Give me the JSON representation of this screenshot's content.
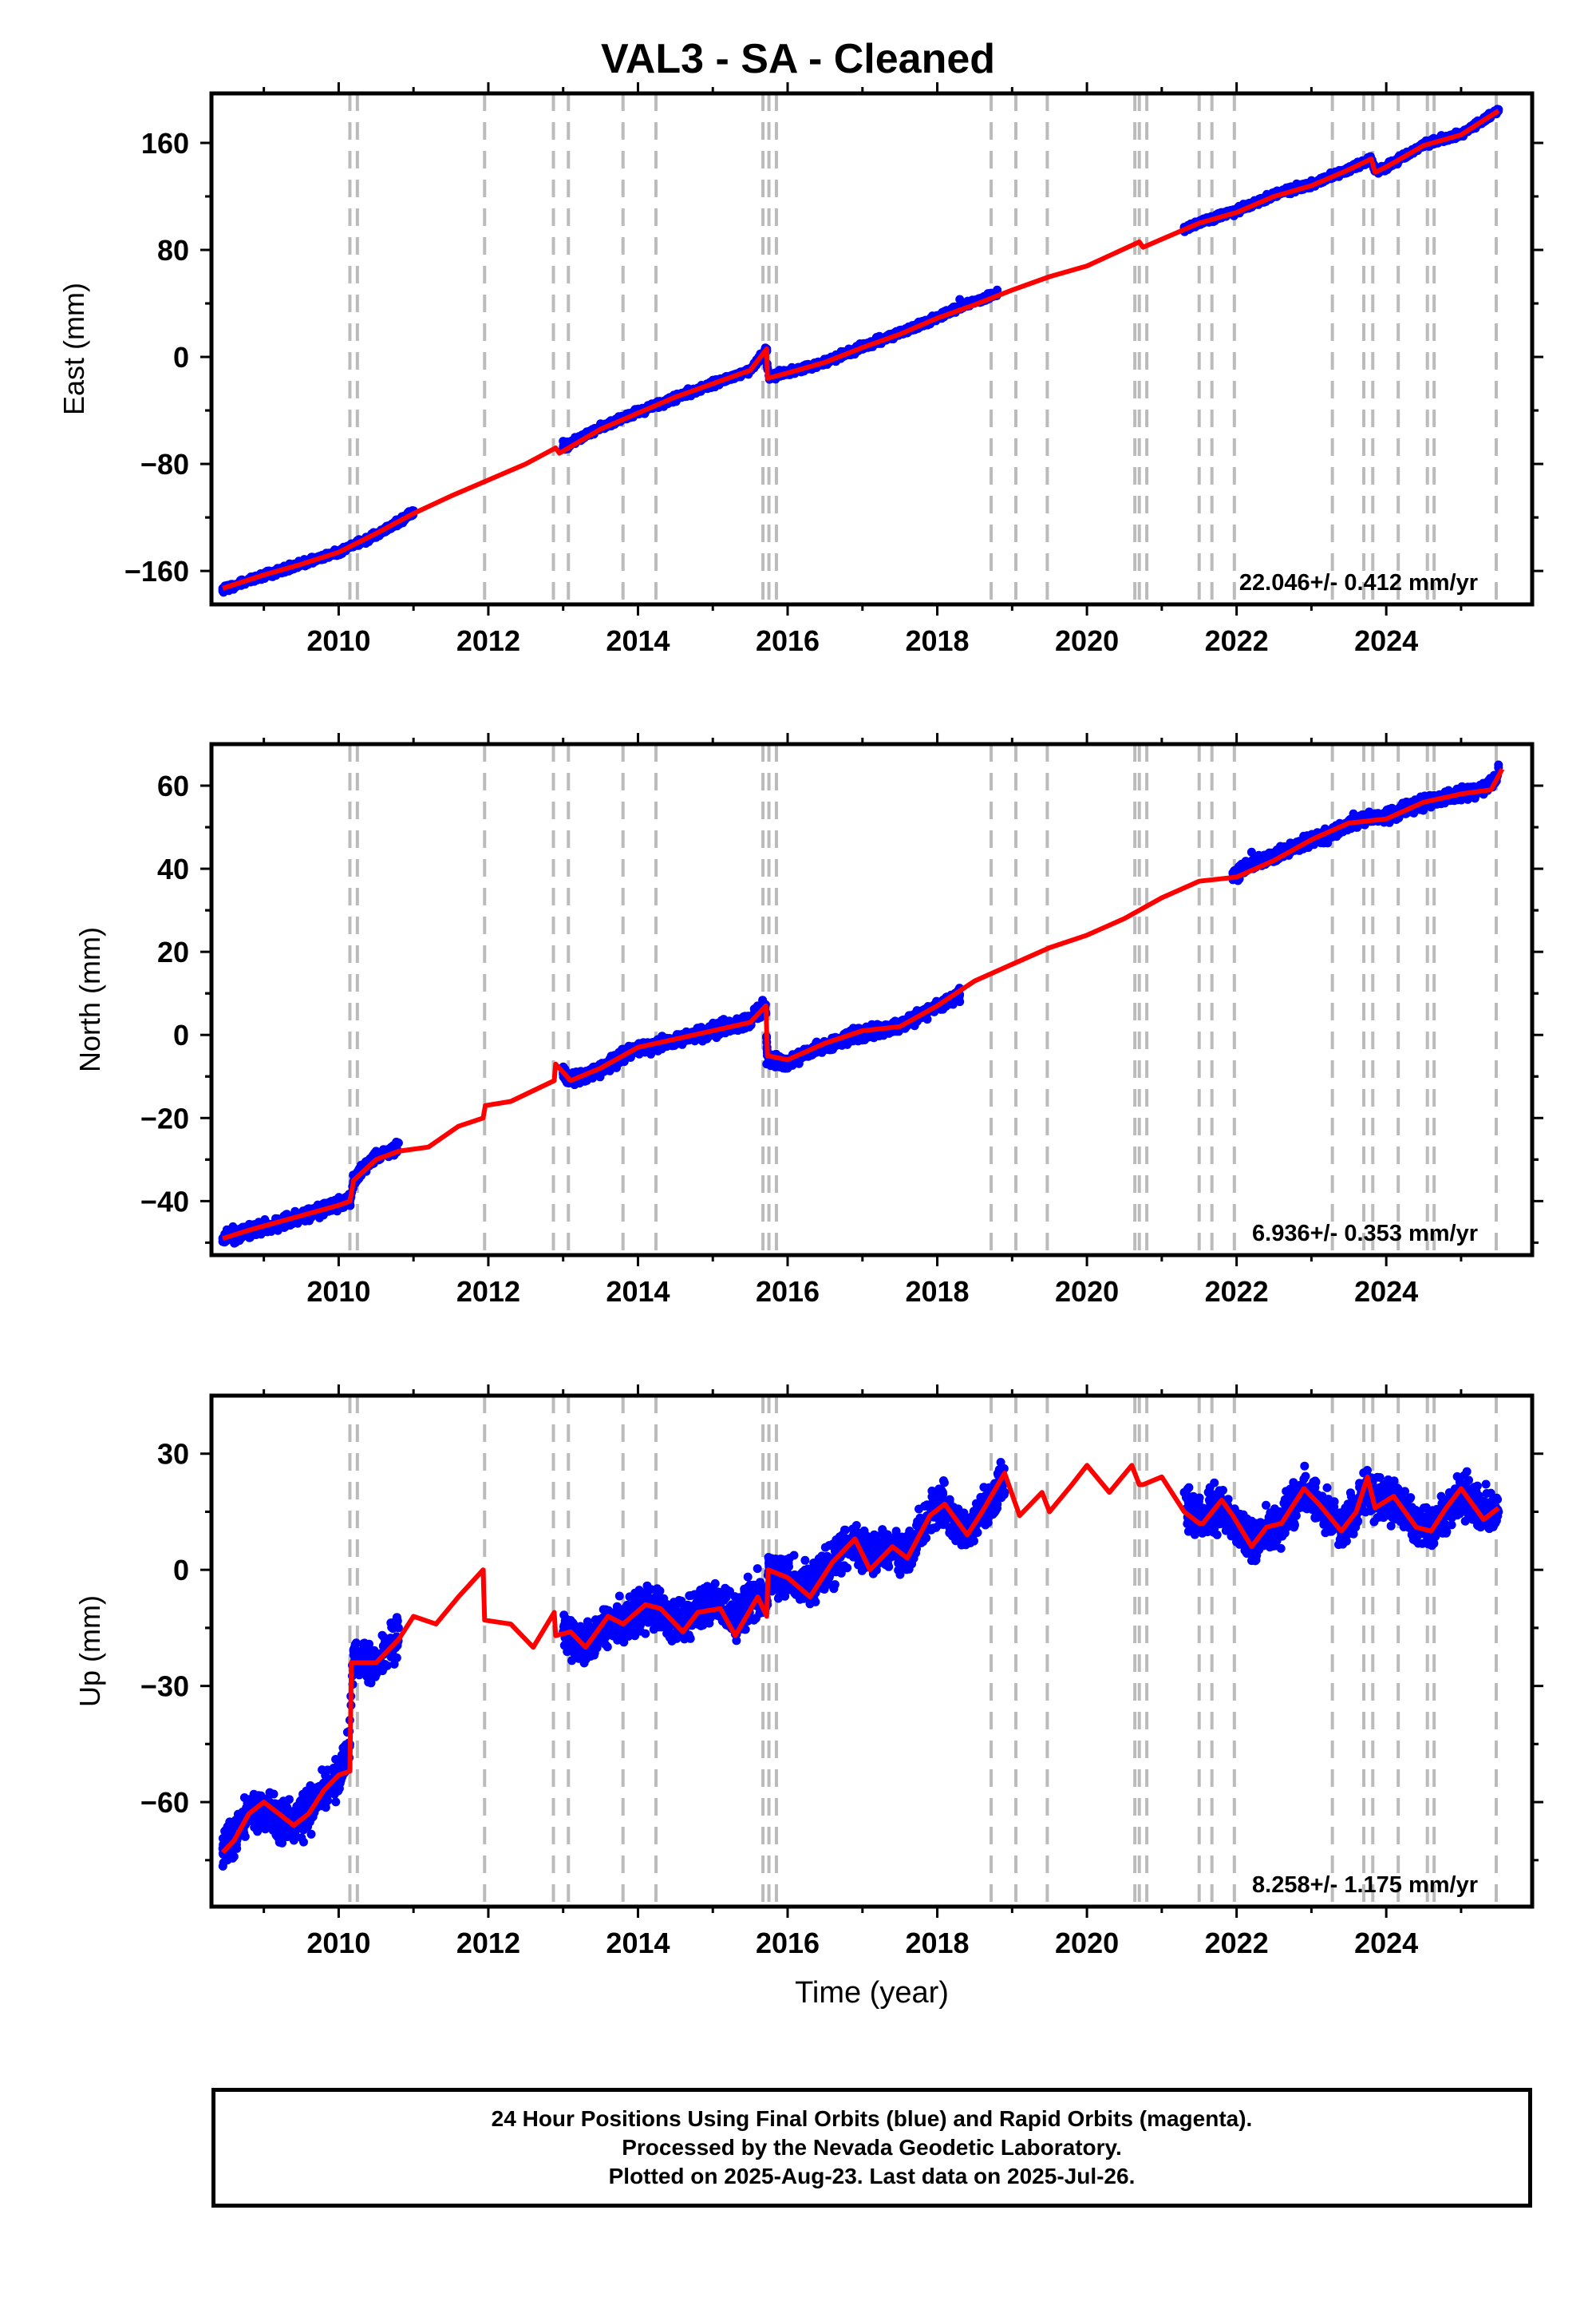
{
  "title": "VAL3  - SA - Cleaned",
  "footer": {
    "line1": "24 Hour Positions Using Final Orbits (blue) and Rapid Orbits (magenta).",
    "line2": "Processed by the Nevada Geodetic Laboratory.",
    "line3": "Plotted on 2025-Aug-23. Last data on 2025-Jul-26."
  },
  "colors": {
    "data": "#0000ff",
    "model": "#ff0000",
    "event_lines": "#bbbbbb",
    "axes": "#000000"
  },
  "chart_data": [
    {
      "type": "scatter",
      "name": "east",
      "ylabel": "East (mm)",
      "xlim": [
        2008.3,
        2025.95
      ],
      "ylim": [
        -185,
        197
      ],
      "yticks": [
        -160,
        -80,
        0,
        80,
        160
      ],
      "xticks": [
        2010,
        2012,
        2014,
        2016,
        2018,
        2020,
        2022,
        2024
      ],
      "rate_label": "22.046+/- 0.412 mm/yr",
      "grid": false,
      "series": [
        {
          "kind": "data",
          "x": [
            2008.45,
            2009.0,
            2009.5,
            2010.0,
            2010.5,
            2011.0,
            2013.0,
            2013.5,
            2014.0,
            2014.5,
            2015.0,
            2015.5,
            2015.72,
            2015.75,
            2016.0,
            2016.5,
            2017.0,
            2017.5,
            2018.0,
            2018.3,
            2018.8,
            2021.3,
            2022.3,
            2022.5,
            2023.0,
            2023.5,
            2023.8,
            2023.9,
            2024.0,
            2024.5,
            2025.0,
            2025.5
          ],
          "y": [
            -175,
            -165,
            -155,
            -145,
            -135,
            -115,
            -63,
            -50,
            -40,
            -32,
            -20,
            -10,
            6,
            -14,
            -11,
            -4,
            8,
            20,
            30,
            43,
            50,
            97,
            118,
            123,
            131,
            141,
            147,
            138,
            142,
            160,
            168,
            185
          ]
        },
        {
          "kind": "model",
          "x": [
            2008.45,
            2009.0,
            2009.5,
            2010.0,
            2010.5,
            2011.0,
            2011.5,
            2012.0,
            2012.5,
            2012.9,
            2012.95,
            2013.5,
            2014.0,
            2014.5,
            2015.0,
            2015.5,
            2015.72,
            2015.73,
            2016.0,
            2016.5,
            2017.0,
            2017.5,
            2018.0,
            2018.5,
            2019.0,
            2019.5,
            2020.0,
            2020.7,
            2020.75,
            2021.0,
            2021.5,
            2022.0,
            2022.5,
            2023.0,
            2023.5,
            2023.8,
            2023.85,
            2024.0,
            2024.5,
            2025.0,
            2025.5
          ],
          "y": [
            -173,
            -163,
            -155,
            -146,
            -132,
            -117,
            -104,
            -92,
            -80,
            -68,
            -72,
            -54,
            -42,
            -30,
            -20,
            -10,
            6,
            -16,
            -12,
            -4,
            7,
            17,
            29,
            39,
            50,
            60,
            68,
            86,
            82,
            88,
            100,
            108,
            120,
            128,
            140,
            148,
            138,
            142,
            158,
            166,
            184
          ]
        }
      ]
    },
    {
      "type": "scatter",
      "name": "north",
      "ylabel": "North (mm)",
      "xlim": [
        2008.3,
        2025.95
      ],
      "ylim": [
        -53,
        70
      ],
      "yticks": [
        -40,
        -20,
        0,
        20,
        40,
        60
      ],
      "xticks": [
        2010,
        2012,
        2014,
        2016,
        2018,
        2020,
        2022,
        2024
      ],
      "rate_label": "6.936+/- 0.353 mm/yr",
      "grid": false,
      "series": [
        {
          "kind": "data",
          "x": [
            2008.45,
            2008.8,
            2009.2,
            2009.6,
            2010.0,
            2010.15,
            2010.25,
            2010.5,
            2010.8,
            2013.0,
            2013.3,
            2013.8,
            2014.3,
            2014.8,
            2015.2,
            2015.7,
            2015.72,
            2016.0,
            2016.3,
            2016.8,
            2017.2,
            2017.8,
            2018.3,
            2021.95,
            2022.2,
            2022.8,
            2023.3,
            2023.7,
            2024.2,
            2024.7,
            2025.2,
            2025.5
          ],
          "y": [
            -49,
            -48,
            -46,
            -43,
            -40,
            -40,
            -33,
            -28,
            -26,
            -9,
            -11,
            -5,
            -3,
            0,
            2,
            7,
            -7,
            -8,
            -5,
            -1,
            0,
            5,
            8,
            39,
            44,
            46,
            48,
            53,
            55,
            57,
            59,
            65
          ]
        },
        {
          "kind": "model",
          "x": [
            2008.45,
            2008.8,
            2009.2,
            2009.6,
            2010.0,
            2010.15,
            2010.2,
            2010.5,
            2010.8,
            2011.2,
            2011.6,
            2011.93,
            2011.96,
            2012.3,
            2012.88,
            2012.9,
            2013.1,
            2013.5,
            2014.0,
            2014.5,
            2015.0,
            2015.5,
            2015.71,
            2015.73,
            2016.0,
            2016.5,
            2017.0,
            2017.5,
            2018.0,
            2018.5,
            2019.0,
            2019.5,
            2020.0,
            2020.5,
            2021.0,
            2021.5,
            2022.0,
            2022.5,
            2023.0,
            2023.5,
            2024.0,
            2024.5,
            2025.0,
            2025.4,
            2025.55
          ],
          "y": [
            -49,
            -47,
            -45,
            -43,
            -41,
            -40,
            -35,
            -30,
            -28,
            -27,
            -22,
            -20,
            -17,
            -16,
            -11,
            -7,
            -11,
            -8,
            -3,
            -1,
            1,
            3,
            7,
            -5,
            -6,
            -2,
            1,
            2,
            7,
            13,
            17,
            21,
            24,
            28,
            33,
            37,
            38,
            42,
            47,
            51,
            52,
            56,
            58,
            59,
            64
          ]
        }
      ]
    },
    {
      "type": "scatter",
      "name": "up",
      "ylabel": "Up (mm)",
      "xlabel": "Time (year)",
      "xlim": [
        2008.3,
        2025.95
      ],
      "ylim": [
        -87,
        45
      ],
      "yticks": [
        -60,
        -30,
        0,
        30
      ],
      "xticks": [
        2010,
        2012,
        2014,
        2016,
        2018,
        2020,
        2022,
        2024
      ],
      "rate_label": "8.258+/- 1.175 mm/yr",
      "grid": false,
      "series": [
        {
          "kind": "data",
          "x": [
            2008.45,
            2008.8,
            2009.2,
            2009.6,
            2010.0,
            2010.2,
            2010.5,
            2010.8,
            2013.0,
            2013.5,
            2014.0,
            2014.5,
            2015.0,
            2015.5,
            2016.0,
            2016.5,
            2017.0,
            2017.5,
            2018.0,
            2018.3,
            2018.9,
            2021.3,
            2022.2,
            2022.6,
            2023.0,
            2023.5,
            2023.9,
            2024.3,
            2024.7,
            2025.1,
            2025.5
          ],
          "y": [
            -72,
            -62,
            -67,
            -61,
            -54,
            -22,
            -25,
            -15,
            -16,
            -18,
            -10,
            -12,
            -6,
            -4,
            -2,
            3,
            9,
            6,
            16,
            10,
            20,
            20,
            8,
            12,
            19,
            12,
            21,
            15,
            12,
            19,
            15
          ]
        },
        {
          "kind": "model",
          "x": [
            2008.45,
            2008.6,
            2008.8,
            2009.0,
            2009.2,
            2009.4,
            2009.6,
            2009.8,
            2010.0,
            2010.15,
            2010.17,
            2010.5,
            2010.8,
            2011.0,
            2011.3,
            2011.6,
            2011.93,
            2011.95,
            2012.3,
            2012.6,
            2012.88,
            2012.9,
            2013.1,
            2013.3,
            2013.6,
            2013.8,
            2014.1,
            2014.3,
            2014.6,
            2014.8,
            2015.1,
            2015.3,
            2015.6,
            2015.72,
            2015.74,
            2016.0,
            2016.3,
            2016.6,
            2016.9,
            2017.1,
            2017.4,
            2017.6,
            2017.9,
            2018.1,
            2018.4,
            2018.6,
            2018.9,
            2019.1,
            2019.4,
            2019.5,
            2019.8,
            2020.0,
            2020.3,
            2020.6,
            2020.7,
            2020.75,
            2021.0,
            2021.3,
            2021.5,
            2021.55,
            2021.8,
            2021.95,
            2022.2,
            2022.4,
            2022.6,
            2022.9,
            2023.1,
            2023.4,
            2023.6,
            2023.75,
            2023.85,
            2024.1,
            2024.4,
            2024.6,
            2024.8,
            2025.0,
            2025.3,
            2025.5
          ],
          "y": [
            -73,
            -70,
            -63,
            -60,
            -63,
            -66,
            -63,
            -57,
            -53,
            -52,
            -24,
            -24,
            -18,
            -12,
            -14,
            -7,
            0,
            -13,
            -14,
            -20,
            -11,
            -17,
            -16,
            -20,
            -12,
            -14,
            -9,
            -10,
            -16,
            -11,
            -10,
            -17,
            -7,
            -12,
            0,
            -2,
            -7,
            2,
            8,
            0,
            6,
            3,
            14,
            17,
            9,
            15,
            25,
            14,
            20,
            15,
            22,
            27,
            20,
            27,
            22,
            22,
            24,
            15,
            12,
            12,
            18,
            14,
            6,
            11,
            12,
            21,
            17,
            10,
            15,
            24,
            16,
            19,
            11,
            10,
            16,
            21,
            13,
            16
          ]
        }
      ]
    }
  ],
  "event_lines_x": [
    2010.15,
    2010.25,
    2011.95,
    2012.87,
    2013.07,
    2013.8,
    2014.24,
    2015.67,
    2015.75,
    2015.85,
    2018.72,
    2019.05,
    2019.47,
    2020.64,
    2020.7,
    2020.8,
    2021.5,
    2021.67,
    2021.97,
    2023.28,
    2023.7,
    2023.82,
    2024.16,
    2024.55,
    2024.64,
    2025.47
  ]
}
